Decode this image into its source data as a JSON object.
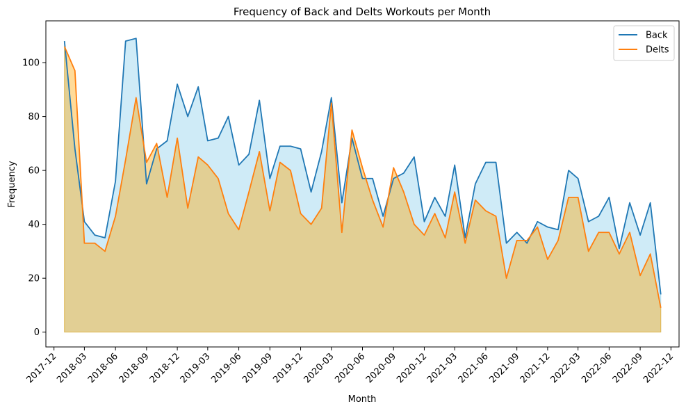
{
  "chart_data": {
    "type": "area",
    "title": "Frequency of Back and Delts Workouts per Month",
    "xlabel": "Month",
    "ylabel": "Frequency",
    "xlim": [
      "2017-11-07",
      "2022-12-25"
    ],
    "ylim": [
      -5.5,
      115.5
    ],
    "y_ticks": [
      0,
      20,
      40,
      60,
      80,
      100
    ],
    "x_ticks": [
      "2017-12",
      "2018-03",
      "2018-06",
      "2018-09",
      "2018-12",
      "2019-03",
      "2019-06",
      "2019-09",
      "2019-12",
      "2020-03",
      "2020-06",
      "2020-09",
      "2020-12",
      "2021-03",
      "2021-06",
      "2021-09",
      "2021-12",
      "2022-03",
      "2022-06",
      "2022-09",
      "2022-12"
    ],
    "legend_position": "top-right",
    "x": [
      "2018-01-01",
      "2018-02-01",
      "2018-03-01",
      "2018-04-01",
      "2018-05-01",
      "2018-06-01",
      "2018-07-01",
      "2018-08-01",
      "2018-09-01",
      "2018-10-01",
      "2018-11-01",
      "2018-12-01",
      "2019-01-01",
      "2019-02-01",
      "2019-03-01",
      "2019-04-01",
      "2019-05-01",
      "2019-06-01",
      "2019-07-01",
      "2019-08-01",
      "2019-09-01",
      "2019-10-01",
      "2019-11-01",
      "2019-12-01",
      "2020-01-01",
      "2020-02-01",
      "2020-03-01",
      "2020-04-01",
      "2020-05-01",
      "2020-06-01",
      "2020-07-01",
      "2020-08-01",
      "2020-09-01",
      "2020-10-01",
      "2020-11-01",
      "2020-12-01",
      "2021-01-01",
      "2021-02-01",
      "2021-03-01",
      "2021-04-01",
      "2021-05-01",
      "2021-06-01",
      "2021-07-01",
      "2021-08-01",
      "2021-09-01",
      "2021-10-01",
      "2021-11-01",
      "2021-12-01",
      "2022-01-01",
      "2022-02-01",
      "2022-03-01",
      "2022-04-01",
      "2022-05-01",
      "2022-06-01",
      "2022-07-01",
      "2022-08-01",
      "2022-09-01",
      "2022-10-01",
      "2022-11-01"
    ],
    "series": [
      {
        "name": "Back",
        "color": "#1f77b4",
        "fill": "#87ceeb",
        "values": [
          108,
          68,
          41,
          36,
          35,
          56,
          108,
          109,
          55,
          68,
          71,
          92,
          80,
          91,
          71,
          72,
          80,
          62,
          66,
          86,
          57,
          69,
          69,
          68,
          52,
          67,
          87,
          48,
          72,
          57,
          57,
          43,
          57,
          59,
          65,
          41,
          50,
          43,
          62,
          35,
          55,
          63,
          63,
          33,
          37,
          33,
          41,
          39,
          38,
          60,
          57,
          41,
          43,
          50,
          31,
          48,
          36,
          48,
          14
        ]
      },
      {
        "name": "Delts",
        "color": "#ff7f0e",
        "fill": "#ffa500",
        "values": [
          106,
          97,
          33,
          33,
          30,
          43,
          64,
          87,
          63,
          70,
          50,
          72,
          46,
          65,
          62,
          57,
          44,
          38,
          52,
          67,
          45,
          63,
          60,
          44,
          40,
          46,
          85,
          37,
          75,
          61,
          49,
          39,
          61,
          52,
          40,
          36,
          44,
          35,
          52,
          33,
          49,
          45,
          43,
          20,
          34,
          34,
          39,
          27,
          34,
          50,
          50,
          30,
          37,
          37,
          29,
          37,
          21,
          29,
          9
        ]
      }
    ]
  }
}
